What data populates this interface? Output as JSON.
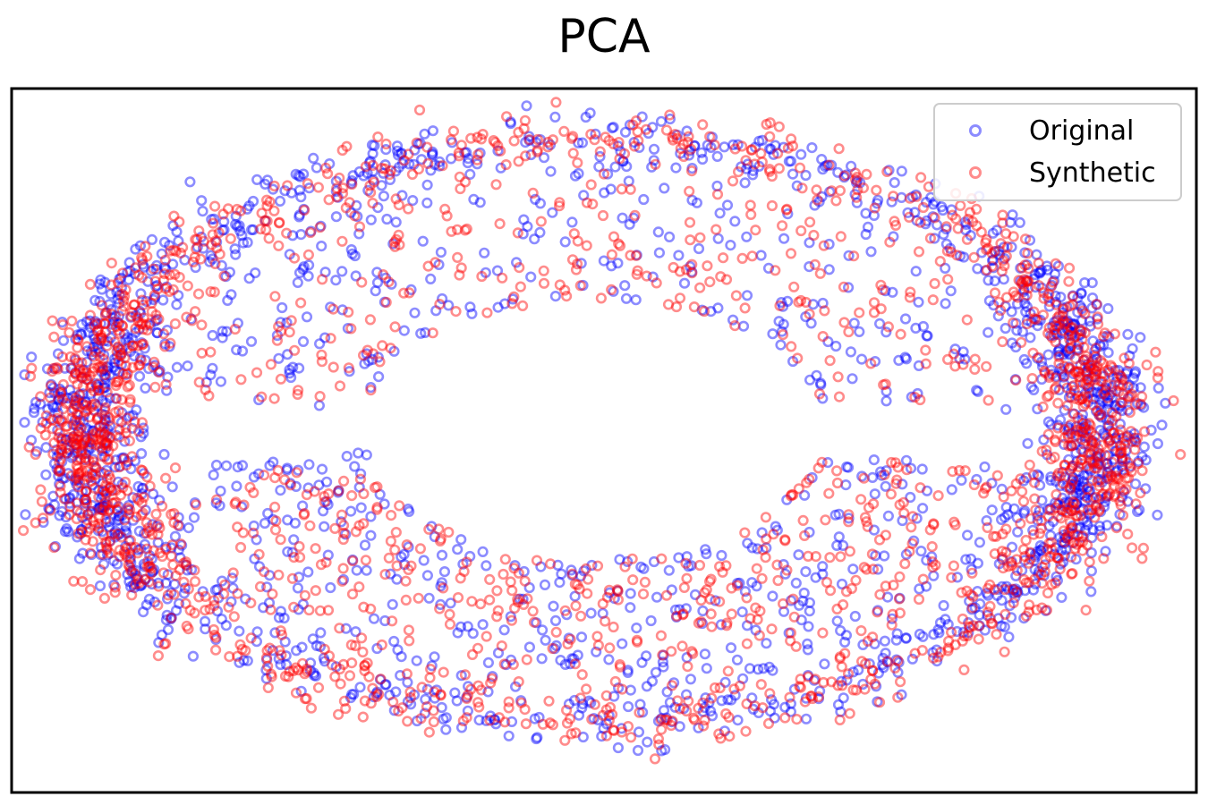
{
  "chart_data": {
    "type": "scatter",
    "title": "PCA",
    "xlabel": "",
    "ylabel": "",
    "xlim": [
      -1.0,
      1.0
    ],
    "ylim": [
      -1.0,
      1.0
    ],
    "grid": false,
    "axis_ticks": false,
    "legend_position": "top-right",
    "point_alpha": 0.45,
    "shape": "elliptical ring with dense clusters at left and right ends; sparse scatter inside the ring above and below a hollow center",
    "series": [
      {
        "name": "Original",
        "color": "#0000ff",
        "point_count_estimate": 2000
      },
      {
        "name": "Synthetic",
        "color": "#ff0000",
        "point_count_estimate": 2000
      }
    ]
  }
}
